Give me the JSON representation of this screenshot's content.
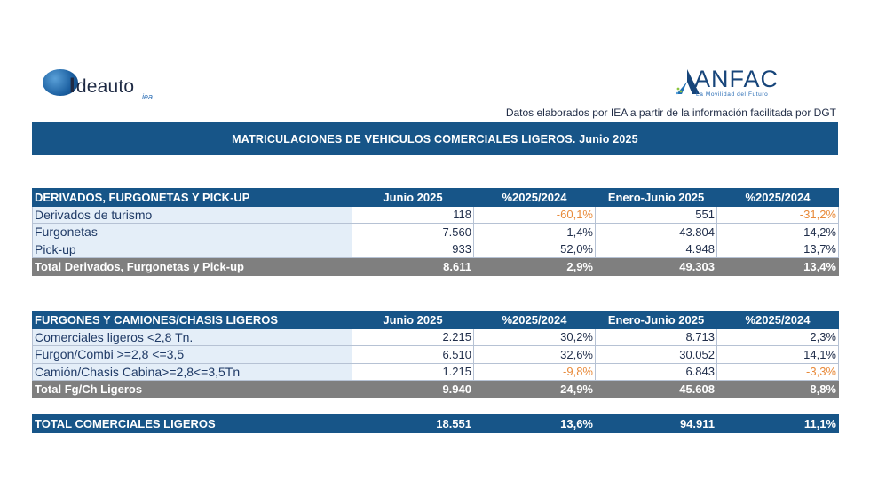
{
  "logos": {
    "left": {
      "word_prefix": "I",
      "word": "deauto",
      "sub": "iea"
    },
    "right": {
      "word": "ANFAC",
      "tagline": "La Movilidad del Futuro"
    }
  },
  "source_note": "Datos elaborados por IEA a partir de la información facilitada por DGT",
  "title": "MATRICULACIONES DE VEHICULOS COMERCIALES LIGEROS. Junio 2025",
  "table1": {
    "headers": [
      "DERIVADOS, FURGONETAS Y PICK-UP",
      "Junio 2025",
      "%2025/2024",
      "Enero-Junio 2025",
      "%2025/2024"
    ],
    "rows": [
      [
        "Derivados de turismo",
        "118",
        "-60,1%",
        "551",
        "-31,2%"
      ],
      [
        "Furgonetas",
        "7.560",
        "1,4%",
        "43.804",
        "14,2%"
      ],
      [
        "Pick-up",
        "933",
        "52,0%",
        "4.948",
        "13,7%"
      ]
    ],
    "total": [
      "Total Derivados, Furgonetas y Pick-up",
      "8.611",
      "2,9%",
      "49.303",
      "13,4%"
    ]
  },
  "table2": {
    "headers": [
      "FURGONES Y CAMIONES/CHASIS LIGEROS",
      "Junio 2025",
      "%2025/2024",
      "Enero-Junio 2025",
      "%2025/2024"
    ],
    "rows": [
      [
        "Comerciales ligeros <2,8 Tn.",
        "2.215",
        "30,2%",
        "8.713",
        "2,3%"
      ],
      [
        "Furgon/Combi >=2,8 <=3,5",
        "6.510",
        "32,6%",
        "30.052",
        "14,1%"
      ],
      [
        "Camión/Chasis Cabina>=2,8<=3,5Tn",
        "1.215",
        "-9,8%",
        "6.843",
        "-3,3%"
      ]
    ],
    "total": [
      "Total Fg/Ch Ligeros",
      "9.940",
      "24,9%",
      "45.608",
      "8,8%"
    ]
  },
  "grand_total": [
    "TOTAL COMERCIALES LIGEROS",
    "18.551",
    "13,6%",
    "94.911",
    "11,1%"
  ]
}
